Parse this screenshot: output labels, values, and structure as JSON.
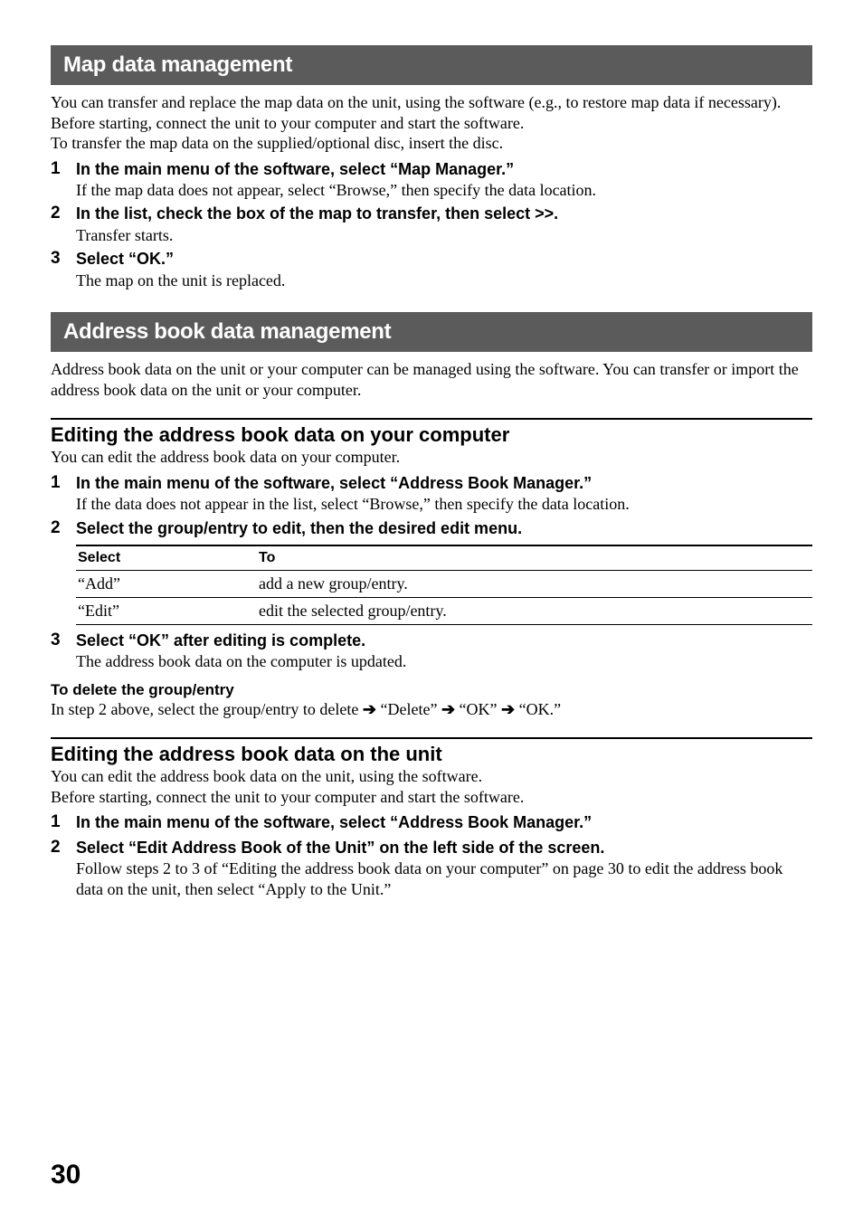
{
  "page_number": "30",
  "colors": {
    "header_bg": "#5b5b5b",
    "header_fg": "#ffffff",
    "text": "#000000",
    "page_bg": "#ffffff"
  },
  "section1": {
    "title": "Map data management",
    "intro": "You can transfer and replace the map data on the unit, using the software (e.g., to restore map data if necessary).\nBefore starting, connect the unit to your computer and start the software.\nTo transfer the map data on the supplied/optional disc, insert the disc.",
    "steps": [
      {
        "num": "1",
        "title": "In the main menu of the software, select “Map Manager.”",
        "detail": "If the map data does not appear, select “Browse,” then specify the data location."
      },
      {
        "num": "2",
        "title": "In the list, check the box of the map to transfer, then select >>.",
        "detail": "Transfer starts."
      },
      {
        "num": "3",
        "title": "Select “OK.”",
        "detail": "The map on the unit is replaced."
      }
    ]
  },
  "section2": {
    "title": "Address book data management",
    "intro": "Address book data on the unit or your computer can be managed using the software. You can transfer or import the address book data on the unit or your computer.",
    "sub1": {
      "title": "Editing the address book data on your computer",
      "lead": "You can edit the address book data on your computer.",
      "steps_a": [
        {
          "num": "1",
          "title": "In the main menu of the software, select “Address Book Manager.”",
          "detail": "If the data does not appear in the list, select “Browse,” then specify the data location."
        },
        {
          "num": "2",
          "title": "Select the group/entry to edit, then the desired edit menu.",
          "detail": ""
        }
      ],
      "table": {
        "headers": {
          "select": "Select",
          "to": "To"
        },
        "rows": [
          {
            "select": "“Add”",
            "to": "add a new group/entry."
          },
          {
            "select": "“Edit”",
            "to": "edit the selected group/entry."
          }
        ]
      },
      "steps_b": [
        {
          "num": "3",
          "title": "Select “OK” after editing is complete.",
          "detail": "The address book data on the computer is updated."
        }
      ],
      "delete_heading": "To delete the group/entry",
      "delete_prefix": "In step 2 above, select the group/entry to delete ",
      "arrow": "➔",
      "del1": " “Delete” ",
      "del2": " “OK” ",
      "del3": " “OK.”"
    },
    "sub2": {
      "title": "Editing the address book data on the unit",
      "lead": "You can edit the address book data on the unit, using the software.\nBefore starting, connect the unit to your computer and start the software.",
      "steps": [
        {
          "num": "1",
          "title": "In the main menu of the software, select “Address Book Manager.”",
          "detail": ""
        },
        {
          "num": "2",
          "title": "Select “Edit Address Book of the Unit” on the left side of the screen.",
          "detail": "Follow steps 2 to 3 of “Editing the address book data on your computer” on page 30 to edit the address book data on the unit, then select “Apply to the Unit.”"
        }
      ]
    }
  }
}
